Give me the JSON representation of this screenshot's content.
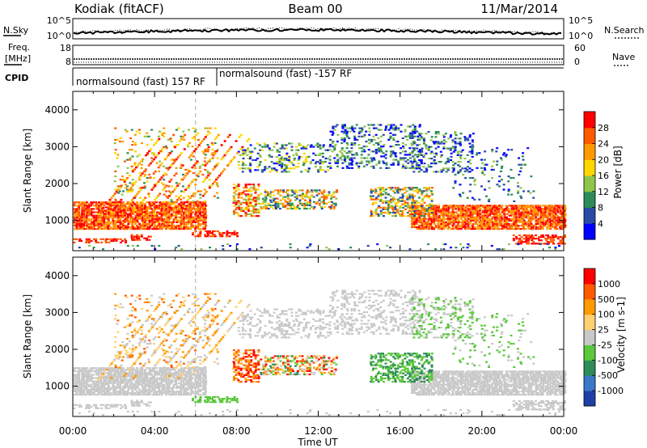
{
  "header": {
    "title_left": "Kodiak (fitACF)",
    "title_center": "Beam 00",
    "title_right": "11/Mar/2014"
  },
  "noise_panel": {
    "left_label": "N.Sky",
    "right_label": "N.Search",
    "left_ticks": [
      "10^5",
      "10^0"
    ],
    "right_ticks": [
      "10^5",
      "10^0"
    ]
  },
  "freq_panel": {
    "left_label_1": "Freq.",
    "left_label_2": "[MHz]",
    "right_label": "Nave",
    "left_ticks": [
      "18",
      "8"
    ],
    "right_ticks": [
      "60",
      "0"
    ]
  },
  "cpid_panel": {
    "label": "CPID",
    "mode_1": "normalsound (fast) 157 RF",
    "mode_2": "normalsound (fast) -157 RF"
  },
  "chart_data": [
    {
      "type": "heatmap",
      "name": "power",
      "ylabel": "Slant Range [km]",
      "xlabel": "",
      "x_ticks": [
        "00:00",
        "04:00",
        "08:00",
        "12:00",
        "16:00",
        "20:00",
        "00:00"
      ],
      "x_range_hours": [
        0,
        24
      ],
      "ylim": [
        180,
        4500
      ],
      "y_ticks": [
        1000,
        2000,
        3000,
        4000
      ],
      "colorbar": {
        "label": "Power [dB]",
        "ticks": [
          "4",
          "8",
          "12",
          "16",
          "20",
          "24",
          "28"
        ],
        "colors": [
          "#0000ff",
          "#2a4aa8",
          "#2e8b57",
          "#8fc64a",
          "#ffd700",
          "#ff9a00",
          "#ff5a00",
          "#ff0000"
        ]
      },
      "dashed_line_hour": 6
    },
    {
      "type": "heatmap",
      "name": "velocity",
      "ylabel": "Slant Range [km]",
      "xlabel": "Time UT",
      "x_ticks": [
        "00:00",
        "04:00",
        "08:00",
        "12:00",
        "16:00",
        "20:00",
        "00:00"
      ],
      "x_range_hours": [
        0,
        24
      ],
      "ylim": [
        180,
        4500
      ],
      "y_ticks": [
        1000,
        2000,
        3000,
        4000
      ],
      "colorbar": {
        "label": "Velocity [m s-1]",
        "ticks": [
          "1000",
          "500",
          "100",
          "25",
          "-25",
          "-100",
          "-500",
          "-1000"
        ],
        "colors": [
          "#1f3fa8",
          "#3a78c8",
          "#2e8b57",
          "#5ac83a",
          "#c8c8c8",
          "#ffd070",
          "#ff9a00",
          "#ff5a00",
          "#ff0000"
        ]
      },
      "dashed_line_hour": 6
    }
  ]
}
